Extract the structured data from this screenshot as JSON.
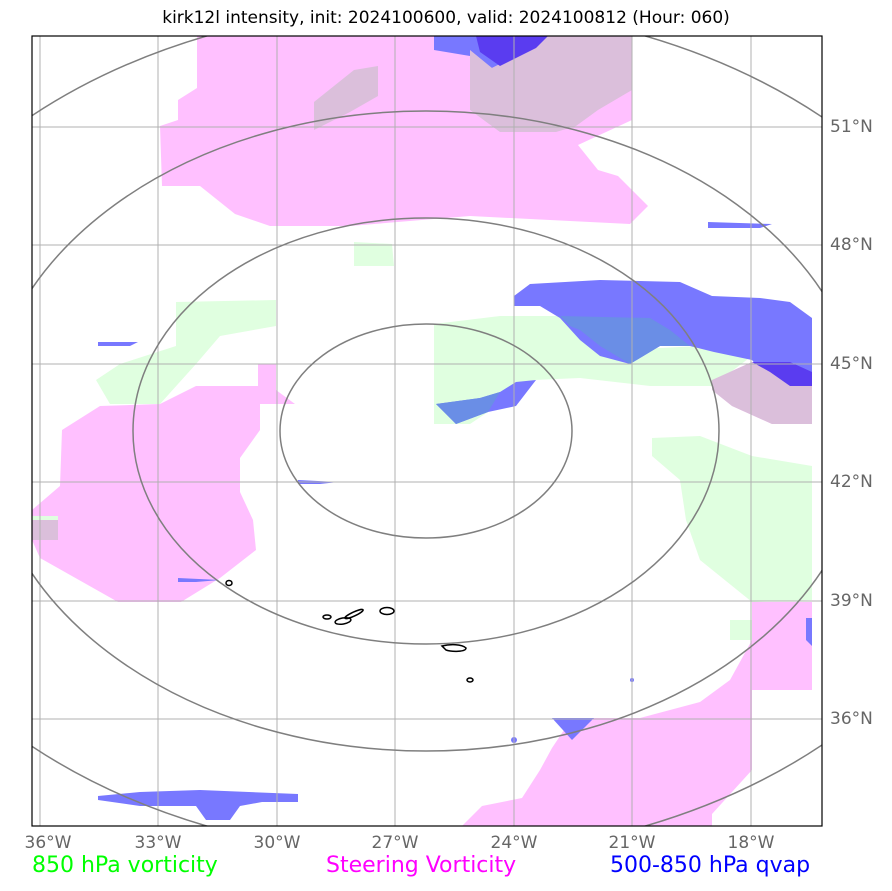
{
  "title": "kirk12l intensity, init: 2024100600, valid: 2024100812 (Hour: 060)",
  "lon_labels": [
    "36°W",
    "33°W",
    "30°W",
    "27°W",
    "24°W",
    "21°W",
    "18°W"
  ],
  "lat_labels": [
    "51°N",
    "48°N",
    "45°N",
    "42°N",
    "39°N",
    "36°N"
  ],
  "legend": {
    "vorticity_850": {
      "label": "850 hPa vorticity",
      "color": "#00ff00"
    },
    "steering": {
      "label": "Steering Vorticity",
      "color": "#ff00ff"
    },
    "qvap": {
      "label": "500-850 hPa qvap",
      "color": "#0000ff"
    }
  },
  "colors": {
    "green_fill": "#e0ffe0",
    "magenta_fill": "#ffc0ff",
    "blue_fill": "#7878ff",
    "overlap_fill": "#dbbfdb",
    "range_rings": "#7f7f7f",
    "gridlines": "#b0b0b0"
  }
}
